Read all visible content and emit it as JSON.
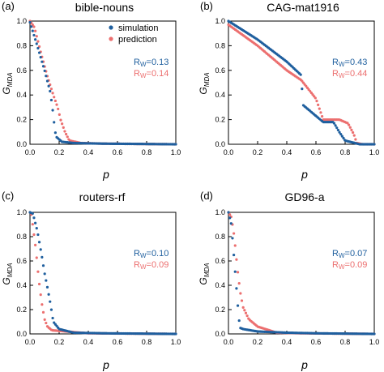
{
  "colors": {
    "simulation": "#1f5f9e",
    "prediction": "#ec6f6f"
  },
  "chart_data": [
    {
      "type": "scatter",
      "panel_label": "(a)",
      "title": "bible-nouns",
      "xlabel": "p",
      "ylabel": "G",
      "ylabel_sub": "MDA",
      "xlim": [
        0,
        1
      ],
      "ylim": [
        0,
        1
      ],
      "xticks": [
        "0.0",
        "0.2",
        "0.4",
        "0.6",
        "0.8",
        "1.0"
      ],
      "yticks": [
        "0.0",
        "0.2",
        "0.4",
        "0.6",
        "0.8",
        "1.0"
      ],
      "legend": {
        "entries": [
          "simulation",
          "prediction"
        ],
        "position": "top-right"
      },
      "annotations": [
        {
          "prefix": "R",
          "sub": "W",
          "value": "=0.13",
          "series": "simulation"
        },
        {
          "prefix": "R",
          "sub": "W",
          "value": "=0.14",
          "series": "prediction"
        }
      ],
      "series": [
        {
          "name": "simulation",
          "points": [
            [
              0.0,
              0.99
            ],
            [
              0.05,
              0.8
            ],
            [
              0.1,
              0.6
            ],
            [
              0.14,
              0.42
            ],
            [
              0.16,
              0.24
            ],
            [
              0.17,
              0.12
            ],
            [
              0.18,
              0.06
            ],
            [
              0.22,
              0.02
            ],
            [
              0.3,
              0.01
            ],
            [
              0.5,
              0.005
            ],
            [
              1.0,
              0.0
            ]
          ]
        },
        {
          "name": "prediction",
          "points": [
            [
              0.0,
              1.0
            ],
            [
              0.03,
              0.95
            ],
            [
              0.08,
              0.72
            ],
            [
              0.12,
              0.55
            ],
            [
              0.16,
              0.4
            ],
            [
              0.19,
              0.3
            ],
            [
              0.21,
              0.2
            ],
            [
              0.24,
              0.1
            ],
            [
              0.27,
              0.03
            ],
            [
              0.35,
              0.01
            ],
            [
              0.5,
              0.005
            ],
            [
              1.0,
              0.0
            ]
          ]
        }
      ]
    },
    {
      "type": "scatter",
      "panel_label": "(b)",
      "title": "CAG-mat1916",
      "xlabel": "p",
      "ylabel": "G",
      "ylabel_sub": "MDA",
      "xlim": [
        0,
        1
      ],
      "ylim": [
        0,
        1
      ],
      "xticks": [
        "0.0",
        "0.2",
        "0.4",
        "0.6",
        "0.8",
        "1.0"
      ],
      "yticks": [
        "0.0",
        "0.2",
        "0.4",
        "0.6",
        "0.8",
        "1.0"
      ],
      "annotations": [
        {
          "prefix": "R",
          "sub": "W",
          "value": "=0.43",
          "series": "simulation"
        },
        {
          "prefix": "R",
          "sub": "W",
          "value": "=0.44",
          "series": "prediction"
        }
      ],
      "series": [
        {
          "name": "simulation",
          "points": [
            [
              0.0,
              1.0
            ],
            [
              0.2,
              0.85
            ],
            [
              0.4,
              0.67
            ],
            [
              0.5,
              0.56
            ],
            [
              0.51,
              0.32
            ],
            [
              0.6,
              0.23
            ],
            [
              0.65,
              0.18
            ],
            [
              0.72,
              0.18
            ],
            [
              0.76,
              0.1
            ],
            [
              0.8,
              0.03
            ],
            [
              0.9,
              0.0
            ],
            [
              1.0,
              0.0
            ]
          ]
        },
        {
          "name": "prediction",
          "points": [
            [
              0.0,
              0.97
            ],
            [
              0.2,
              0.8
            ],
            [
              0.4,
              0.6
            ],
            [
              0.5,
              0.52
            ],
            [
              0.6,
              0.37
            ],
            [
              0.65,
              0.2
            ],
            [
              0.76,
              0.2
            ],
            [
              0.82,
              0.17
            ],
            [
              0.86,
              0.08
            ],
            [
              0.88,
              0.01
            ],
            [
              0.92,
              0.0
            ],
            [
              1.0,
              0.0
            ]
          ]
        }
      ]
    },
    {
      "type": "scatter",
      "panel_label": "(c)",
      "title": "routers-rf",
      "xlabel": "p",
      "ylabel": "G",
      "ylabel_sub": "MDA",
      "xlim": [
        0,
        1
      ],
      "ylim": [
        0,
        1
      ],
      "xticks": [
        "0.0",
        "0.2",
        "0.4",
        "0.6",
        "0.8",
        "1.0"
      ],
      "yticks": [
        "0.0",
        "0.2",
        "0.4",
        "0.6",
        "0.8",
        "1.0"
      ],
      "annotations": [
        {
          "prefix": "R",
          "sub": "W",
          "value": "=0.10",
          "series": "simulation"
        },
        {
          "prefix": "R",
          "sub": "W",
          "value": "=0.09",
          "series": "prediction"
        }
      ],
      "series": [
        {
          "name": "simulation",
          "points": [
            [
              0.0,
              1.0
            ],
            [
              0.02,
              0.99
            ],
            [
              0.05,
              0.85
            ],
            [
              0.08,
              0.65
            ],
            [
              0.1,
              0.5
            ],
            [
              0.12,
              0.38
            ],
            [
              0.14,
              0.25
            ],
            [
              0.16,
              0.1
            ],
            [
              0.2,
              0.04
            ],
            [
              0.3,
              0.01
            ],
            [
              0.5,
              0.005
            ],
            [
              1.0,
              0.0
            ]
          ]
        },
        {
          "name": "prediction",
          "points": [
            [
              0.0,
              1.0
            ],
            [
              0.01,
              0.98
            ],
            [
              0.04,
              0.7
            ],
            [
              0.06,
              0.45
            ],
            [
              0.08,
              0.26
            ],
            [
              0.1,
              0.12
            ],
            [
              0.12,
              0.06
            ],
            [
              0.15,
              0.03
            ],
            [
              0.25,
              0.02
            ],
            [
              0.4,
              0.005
            ],
            [
              1.0,
              0.0
            ]
          ]
        }
      ]
    },
    {
      "type": "scatter",
      "panel_label": "(d)",
      "title": "GD96-a",
      "xlabel": "p",
      "ylabel": "G",
      "ylabel_sub": "MDA",
      "xlim": [
        0,
        1
      ],
      "ylim": [
        0,
        1
      ],
      "xticks": [
        "0.0",
        "0.2",
        "0.4",
        "0.6",
        "0.8",
        "1.0"
      ],
      "yticks": [
        "0.0",
        "0.2",
        "0.4",
        "0.6",
        "0.8",
        "1.0"
      ],
      "annotations": [
        {
          "prefix": "R",
          "sub": "W",
          "value": "=0.07",
          "series": "simulation"
        },
        {
          "prefix": "R",
          "sub": "W",
          "value": "=0.09",
          "series": "prediction"
        }
      ],
      "series": [
        {
          "name": "simulation",
          "points": [
            [
              0.0,
              1.0
            ],
            [
              0.02,
              0.9
            ],
            [
              0.04,
              0.6
            ],
            [
              0.06,
              0.3
            ],
            [
              0.07,
              0.14
            ],
            [
              0.08,
              0.05
            ],
            [
              0.1,
              0.04
            ],
            [
              0.2,
              0.02
            ],
            [
              0.4,
              0.01
            ],
            [
              0.6,
              0.005
            ],
            [
              1.0,
              0.0
            ]
          ]
        },
        {
          "name": "prediction",
          "points": [
            [
              0.0,
              1.0
            ],
            [
              0.02,
              0.96
            ],
            [
              0.04,
              0.8
            ],
            [
              0.06,
              0.55
            ],
            [
              0.08,
              0.35
            ],
            [
              0.1,
              0.22
            ],
            [
              0.14,
              0.12
            ],
            [
              0.2,
              0.06
            ],
            [
              0.28,
              0.03
            ],
            [
              0.33,
              0.01
            ],
            [
              0.5,
              0.005
            ],
            [
              1.0,
              0.0
            ]
          ]
        }
      ]
    }
  ]
}
